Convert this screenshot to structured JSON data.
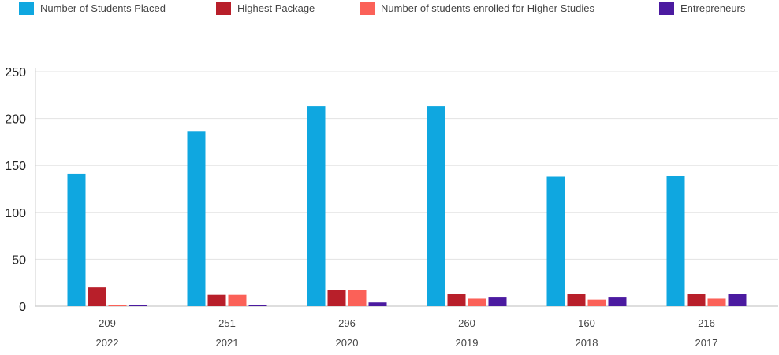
{
  "chart_data": {
    "type": "bar",
    "title": "",
    "xlabel": "",
    "ylabel": "",
    "ylim": [
      0,
      250
    ],
    "yticks": [
      0,
      50,
      100,
      150,
      200,
      250
    ],
    "grid": true,
    "legend_position": "top",
    "categories": [
      "2022",
      "2021",
      "2020",
      "2019",
      "2018",
      "2017"
    ],
    "secondary_labels": [
      "209",
      "251",
      "296",
      "260",
      "160",
      "216"
    ],
    "series": [
      {
        "name": "Number of Students Placed",
        "color": "#0fa7e0",
        "values": [
          141,
          186,
          213,
          213,
          138,
          139
        ]
      },
      {
        "name": "Highest Package",
        "color": "#b81f2a",
        "values": [
          20,
          12,
          17,
          13,
          13,
          13
        ]
      },
      {
        "name": "Number of students enrolled for Higher Studies",
        "color": "#fb6158",
        "values": [
          1,
          12,
          17,
          8,
          7,
          8
        ]
      },
      {
        "name": "Entrepreneurs",
        "color": "#4b1aa0",
        "values": [
          1,
          1,
          4,
          10,
          10,
          13
        ]
      }
    ]
  }
}
